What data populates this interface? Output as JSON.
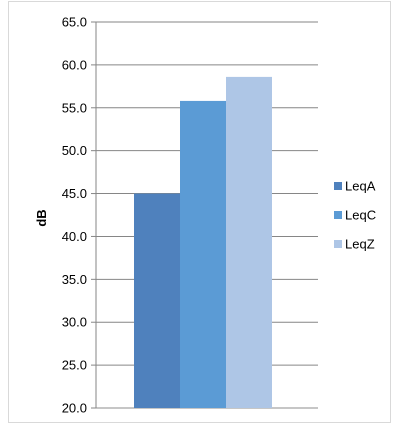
{
  "chart_data": {
    "type": "bar",
    "categories": [
      ""
    ],
    "series": [
      {
        "name": "LeqA",
        "values": [
          45.0
        ],
        "color": "#4f81bd"
      },
      {
        "name": "LeqC",
        "values": [
          55.8
        ],
        "color": "#5b9bd5"
      },
      {
        "name": "LeqZ",
        "values": [
          58.6
        ],
        "color": "#aec6e6"
      }
    ],
    "title": "",
    "xlabel": "",
    "ylabel": "dB",
    "ylim": [
      20.0,
      65.0
    ],
    "yticks": [
      "20.0",
      "25.0",
      "30.0",
      "35.0",
      "40.0",
      "45.0",
      "50.0",
      "55.0",
      "60.0",
      "65.0"
    ],
    "grid": true,
    "legend_position": "right"
  }
}
